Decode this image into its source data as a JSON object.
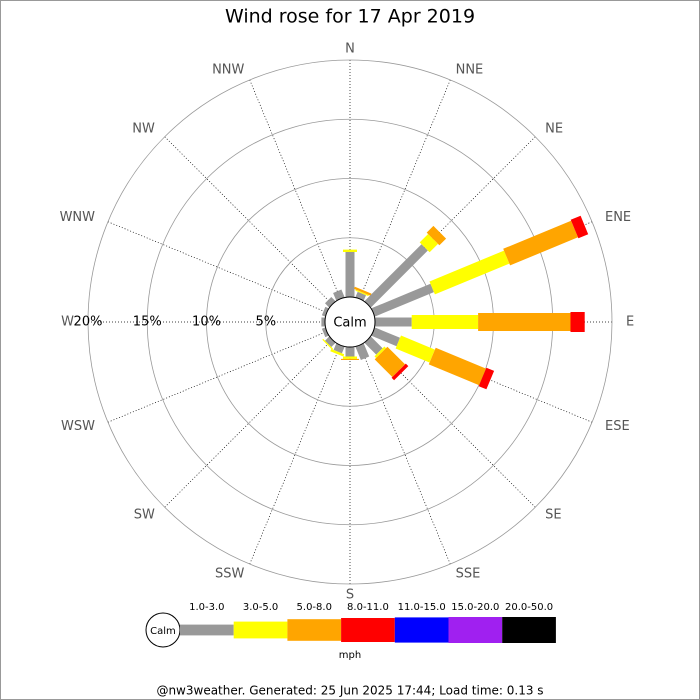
{
  "chart_data": {
    "type": "wind-rose",
    "title": "Wind rose for 17 Apr 2019",
    "categories": [
      "N",
      "NNE",
      "NE",
      "ENE",
      "E",
      "ESE",
      "SE",
      "SSE",
      "S",
      "SSW",
      "SW",
      "WSW",
      "W",
      "WNW",
      "NW",
      "NNW"
    ],
    "series": [
      {
        "name": "1.0-3.0",
        "color": "#999999",
        "values": [
          3.8,
          0.5,
          6.8,
          5.4,
          3.1,
          2.3,
          1.4,
          1.2,
          0.8,
          0.6,
          0.5,
          0.3,
          0.3,
          0.3,
          0.5,
          0.7
        ]
      },
      {
        "name": "3.0-5.0",
        "color": "#ffff00",
        "values": [
          0.2,
          0.1,
          1.0,
          6.8,
          5.6,
          3.1,
          0.2,
          0,
          0.2,
          0.2,
          0.1,
          0,
          0,
          0,
          0,
          0
        ]
      },
      {
        "name": "5.0-8.0",
        "color": "#ffa500",
        "values": [
          0,
          0.2,
          0.8,
          6.2,
          7.8,
          4.6,
          2.1,
          0,
          0.1,
          0,
          0,
          0,
          0,
          0,
          0,
          0
        ]
      },
      {
        "name": "8.0-11.0",
        "color": "#ff0000",
        "values": [
          0,
          0,
          0,
          0.9,
          1.2,
          0.7,
          0.3,
          0,
          0,
          0,
          0,
          0,
          0,
          0,
          0,
          0
        ]
      },
      {
        "name": "11.0-15.0",
        "color": "#0000ff",
        "values": [
          0,
          0,
          0,
          0,
          0,
          0,
          0,
          0,
          0,
          0,
          0,
          0,
          0,
          0,
          0,
          0
        ]
      },
      {
        "name": "15.0-20.0",
        "color": "#a020f0",
        "values": [
          0,
          0,
          0,
          0,
          0,
          0,
          0,
          0,
          0,
          0,
          0,
          0,
          0,
          0,
          0,
          0
        ]
      },
      {
        "name": "20.0-50.0",
        "color": "#000000",
        "values": [
          0,
          0,
          0,
          0,
          0,
          0,
          0,
          0,
          0,
          0,
          0,
          0,
          0,
          0,
          0,
          0
        ]
      }
    ],
    "rlim": [
      0,
      20
    ],
    "rticks": [
      {
        "value": 5,
        "label": "5%"
      },
      {
        "value": 10,
        "label": "10%"
      },
      {
        "value": 15,
        "label": "15%"
      },
      {
        "value": 20,
        "label": "20%"
      }
    ],
    "calm_label": "Calm",
    "unit_label": "mph",
    "footer": "@nw3weather. Generated: 25 Jun 2025 17:44; Load time: 0.13 s"
  }
}
